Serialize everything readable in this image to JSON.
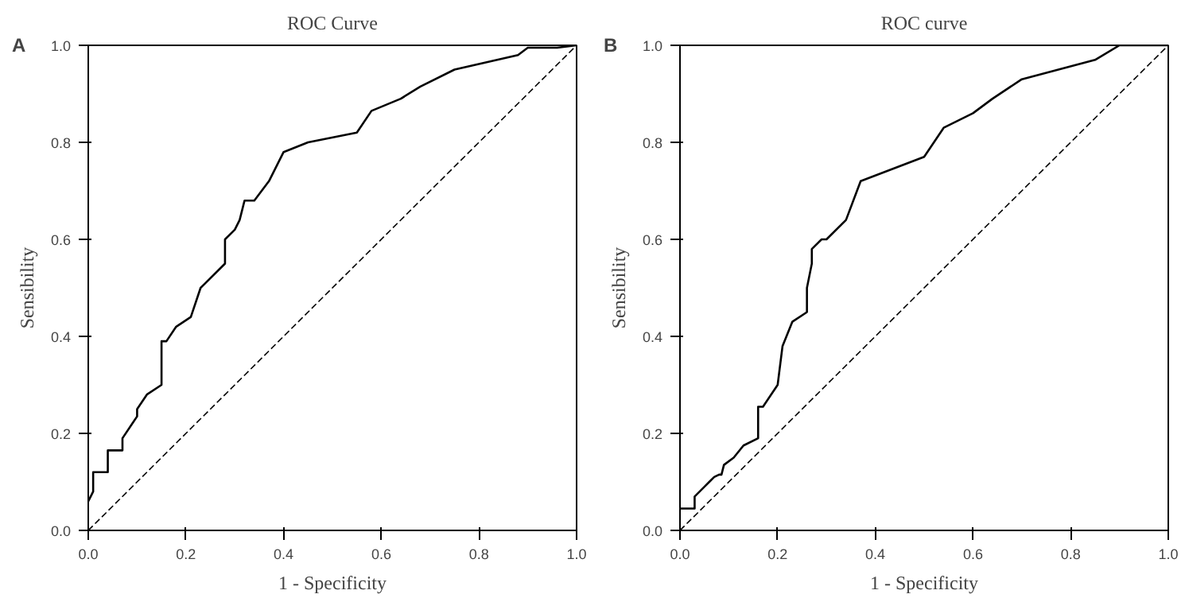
{
  "chart_data": [
    {
      "type": "line",
      "title": "ROC Curve",
      "xlabel": "1 - Specificity",
      "ylabel": "Sensibility",
      "annotations": [
        "A"
      ],
      "xlim": [
        0,
        1
      ],
      "ylim": [
        0,
        1
      ],
      "xticks": [
        {
          "value": 0,
          "label": "0.0"
        },
        {
          "value": 0.2,
          "label": "0.2"
        },
        {
          "value": 0.4,
          "label": "0.4"
        },
        {
          "value": 0.6,
          "label": "0.6"
        },
        {
          "value": 0.8,
          "label": "0.8"
        },
        {
          "value": 1,
          "label": "1.0"
        }
      ],
      "yticks": [
        {
          "value": 0,
          "label": "0.0"
        },
        {
          "value": 0.2,
          "label": "0.2"
        },
        {
          "value": 0.4,
          "label": "0.4"
        },
        {
          "value": 0.6,
          "label": "0.6"
        },
        {
          "value": 0.8,
          "label": "0.8"
        },
        {
          "value": 1,
          "label": "1.0"
        }
      ],
      "series": [
        {
          "color": "#000000",
          "line_style": "solid",
          "x": [
            0,
            0.01,
            0.01,
            0.04,
            0.04,
            0.07,
            0.07,
            0.09,
            0.1,
            0.1,
            0.12,
            0.15,
            0.15,
            0.16,
            0.18,
            0.21,
            0.23,
            0.28,
            0.28,
            0.3,
            0.31,
            0.32,
            0.34,
            0.37,
            0.4,
            0.45,
            0.55,
            0.58,
            0.64,
            0.68,
            0.75,
            0.88,
            0.9,
            0.96,
            1
          ],
          "values": [
            0.06,
            0.08,
            0.12,
            0.12,
            0.165,
            0.165,
            0.19,
            0.22,
            0.235,
            0.25,
            0.28,
            0.3,
            0.39,
            0.39,
            0.42,
            0.44,
            0.5,
            0.55,
            0.6,
            0.62,
            0.64,
            0.68,
            0.68,
            0.72,
            0.78,
            0.8,
            0.82,
            0.865,
            0.89,
            0.915,
            0.95,
            0.98,
            0.995,
            0.995,
            1
          ]
        },
        {
          "color": "#000000",
          "line_style": "dashed",
          "x": [
            0,
            1
          ],
          "values": [
            0,
            1
          ]
        }
      ]
    },
    {
      "type": "line",
      "title": "ROC curve",
      "xlabel": "1 - Specificity",
      "ylabel": "Sensibility",
      "annotations": [
        "B"
      ],
      "xlim": [
        0,
        1
      ],
      "ylim": [
        0,
        1
      ],
      "xticks": [
        {
          "value": 0,
          "label": "0.0"
        },
        {
          "value": 0.2,
          "label": "0.2"
        },
        {
          "value": 0.4,
          "label": "0.4"
        },
        {
          "value": 0.6,
          "label": "0.6"
        },
        {
          "value": 0.8,
          "label": "0.8"
        },
        {
          "value": 1,
          "label": "1.0"
        }
      ],
      "yticks": [
        {
          "value": 0,
          "label": "0.0"
        },
        {
          "value": 0.2,
          "label": "0.2"
        },
        {
          "value": 0.4,
          "label": "0.4"
        },
        {
          "value": 0.6,
          "label": "0.6"
        },
        {
          "value": 0.8,
          "label": "0.8"
        },
        {
          "value": 1,
          "label": "1.0"
        }
      ],
      "series": [
        {
          "color": "#000000",
          "line_style": "solid",
          "x": [
            0,
            0.03,
            0.03,
            0.05,
            0.06,
            0.07,
            0.08,
            0.085,
            0.09,
            0.11,
            0.13,
            0.16,
            0.16,
            0.17,
            0.2,
            0.21,
            0.23,
            0.26,
            0.26,
            0.27,
            0.27,
            0.29,
            0.3,
            0.34,
            0.37,
            0.5,
            0.54,
            0.6,
            0.64,
            0.7,
            0.85,
            0.9,
            0.97,
            1
          ],
          "values": [
            0.045,
            0.045,
            0.07,
            0.09,
            0.1,
            0.11,
            0.115,
            0.115,
            0.135,
            0.15,
            0.175,
            0.19,
            0.255,
            0.255,
            0.3,
            0.38,
            0.43,
            0.45,
            0.5,
            0.55,
            0.58,
            0.6,
            0.6,
            0.64,
            0.72,
            0.77,
            0.83,
            0.86,
            0.89,
            0.93,
            0.97,
            1.0,
            1.0,
            1
          ]
        },
        {
          "color": "#000000",
          "line_style": "dashed",
          "x": [
            0,
            1
          ],
          "values": [
            0,
            1
          ]
        }
      ]
    }
  ]
}
